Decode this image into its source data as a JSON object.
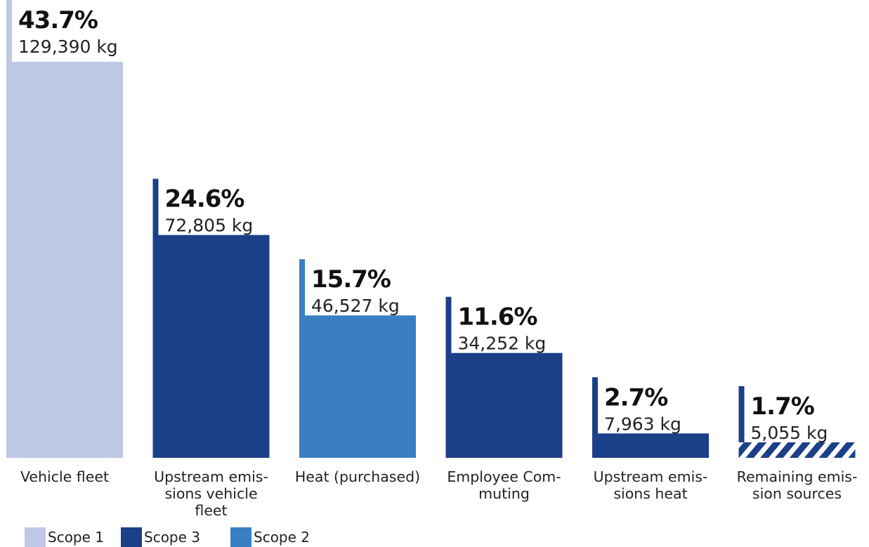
{
  "chart_data": {
    "type": "bar",
    "title": "",
    "xlabel": "",
    "ylabel": "",
    "ylim": [
      0,
      129390
    ],
    "colors": {
      "Scope 1": "#bfc8e6",
      "Scope 3": "#1b3f88",
      "Scope 2": "#3a7fc2"
    },
    "legend": {
      "position": "bottom-left",
      "items": [
        {
          "label": "Scope 1",
          "color": "#bfc8e6"
        },
        {
          "label": "Scope 3",
          "color": "#1b3f88"
        },
        {
          "label": "Scope 2",
          "color": "#3a7fc2"
        }
      ]
    },
    "bars": [
      {
        "category": "Vehicle fleet",
        "label_lines": [
          "Vehicle fleet"
        ],
        "percent": "43.7%",
        "value": 129390,
        "value_label": "129,390 kg",
        "scope": "Scope 1",
        "pattern": "solid"
      },
      {
        "category": "Upstream emissions vehicle fleet",
        "label_lines": [
          "Upstream emis-",
          "sions vehicle",
          "fleet"
        ],
        "percent": "24.6%",
        "value": 72805,
        "value_label": "72,805 kg",
        "scope": "Scope 3",
        "pattern": "solid"
      },
      {
        "category": "Heat (purchased)",
        "label_lines": [
          "Heat (purchased)"
        ],
        "percent": "15.7%",
        "value": 46527,
        "value_label": "46,527 kg",
        "scope": "Scope 2",
        "pattern": "solid"
      },
      {
        "category": "Employee Commuting",
        "label_lines": [
          "Employee Com-",
          "muting"
        ],
        "percent": "11.6%",
        "value": 34252,
        "value_label": "34,252 kg",
        "scope": "Scope 3",
        "pattern": "solid"
      },
      {
        "category": "Upstream emissions heat",
        "label_lines": [
          "Upstream emis-",
          "sions heat"
        ],
        "percent": "2.7%",
        "value": 7963,
        "value_label": "7,963 kg",
        "scope": "Scope 3",
        "pattern": "solid"
      },
      {
        "category": "Remaining emission sources",
        "label_lines": [
          "Remaining emis-",
          "sion sources"
        ],
        "percent": "1.7%",
        "value": 5055,
        "value_label": "5,055 kg",
        "scope": "Scope 3",
        "pattern": "hatched"
      }
    ]
  }
}
